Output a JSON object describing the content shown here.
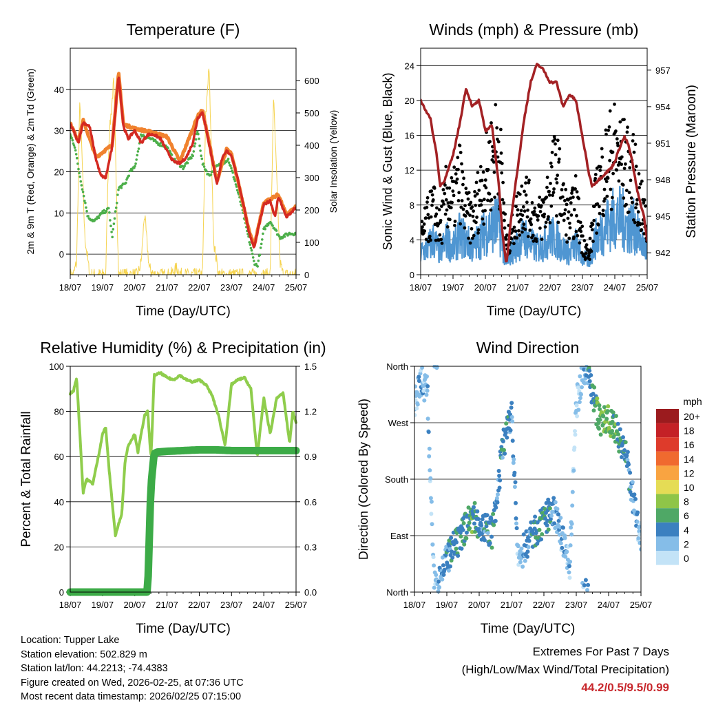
{
  "info": {
    "location": "Location: Tupper Lake",
    "elevation": "Station elevation: 502.829 m",
    "latlon": "Station lat/lon: 44.2213; -74.4383",
    "created": "Figure created on Wed, 2026-02-25, at 07:36 UTC",
    "recent": "Most recent data timestamp: 2026/02/25 07:15:00"
  },
  "extremes": {
    "title": "Extremes For Past 7 Days",
    "subtitle": "(High/Low/Max Wind/Total Precipitation)",
    "values": "44.2/0.5/9.5/0.99"
  },
  "legend": {
    "title": "mph",
    "labels": [
      "20+",
      "18",
      "16",
      "14",
      "12",
      "10",
      "8",
      "6",
      "4",
      "2",
      "0"
    ],
    "colors": [
      "#9b1b1e",
      "#c42126",
      "#de3b2b",
      "#f06a2f",
      "#f9a441",
      "#e5dc55",
      "#8fc548",
      "#4fa866",
      "#3b80c0",
      "#85bde8",
      "#c3e3f7"
    ]
  },
  "chart_data": [
    {
      "type": "line",
      "title": "Temperature (F)",
      "xlabel": "Time (Day/UTC)",
      "ylabel": "2m & 9m T (Red, Orange) & 2m Td (Green)",
      "ylabel_right": "Solar Insolation (Yellow)",
      "x_ticks": [
        "18/07",
        "19/07",
        "20/07",
        "21/07",
        "22/07",
        "23/07",
        "24/07",
        "25/07"
      ],
      "ylim": [
        -5,
        50
      ],
      "y_ticks": [
        0,
        10,
        20,
        30,
        40
      ],
      "ylim_right": [
        0,
        700
      ],
      "y_ticks_right": [
        0,
        100,
        200,
        300,
        400,
        500,
        600
      ],
      "series": [
        {
          "name": "2m T",
          "color": "#d42a22",
          "x": [
            0,
            0.1,
            0.25,
            0.4,
            0.6,
            0.8,
            0.95,
            1.1,
            1.3,
            1.5,
            1.65,
            1.8,
            2,
            2.2,
            2.4,
            2.6,
            2.8,
            3,
            3.2,
            3.4,
            3.6,
            3.8,
            3.95,
            4.1,
            4.3,
            4.45,
            4.55,
            4.7,
            4.85,
            5,
            5.2,
            5.4,
            5.55,
            5.7,
            5.85,
            6,
            6.2,
            6.35,
            6.45,
            6.55,
            6.7,
            6.85,
            6.95,
            7
          ],
          "values": [
            31.5,
            30,
            27,
            32,
            31,
            23,
            19,
            18.5,
            26,
            43.5,
            31,
            28,
            30,
            27,
            29,
            29,
            28,
            25,
            22.5,
            22,
            23.5,
            27,
            33,
            34.5,
            27,
            21,
            17,
            23,
            25,
            24,
            18,
            11,
            5,
            1.5,
            7,
            12,
            13,
            9,
            14,
            12,
            9,
            10,
            11,
            11
          ]
        },
        {
          "name": "9m T",
          "color": "#f0822e",
          "x": [
            0,
            0.25,
            0.4,
            0.8,
            1.3,
            1.5,
            1.65,
            2,
            2.6,
            3,
            3.4,
            3.95,
            4.1,
            4.45,
            4.55,
            4.85,
            5,
            5.55,
            5.7,
            6,
            6.45,
            6.55,
            6.7,
            7
          ],
          "values": [
            31.8,
            27.5,
            32.5,
            23.5,
            26.5,
            44,
            31.5,
            30.5,
            29.5,
            28.5,
            22.5,
            33.5,
            35,
            21.5,
            17.5,
            25.5,
            24.5,
            5.5,
            2,
            12.5,
            14.5,
            12.5,
            9.5,
            11.5
          ]
        },
        {
          "name": "2m Td",
          "color": "#4caf4a",
          "x": [
            0,
            0.15,
            0.25,
            0.4,
            0.55,
            0.75,
            1,
            1.2,
            1.3,
            1.5,
            1.7,
            1.85,
            2,
            2.2,
            2.5,
            2.7,
            3,
            3.2,
            3.5,
            3.8,
            3.95,
            4.1,
            4.3,
            4.5,
            4.7,
            4.9,
            5.1,
            5.3,
            5.5,
            5.7,
            5.8,
            5.9,
            6,
            6.2,
            6.5,
            6.8,
            7
          ],
          "values": [
            29,
            26,
            21,
            15,
            9,
            8,
            10,
            11,
            4,
            16,
            17,
            20,
            21,
            29,
            28,
            27,
            26,
            23,
            21,
            24,
            30,
            22,
            19,
            21,
            22,
            23,
            18,
            12,
            5,
            -2,
            -3,
            1,
            6,
            8,
            4,
            5,
            5
          ]
        },
        {
          "name": "Solar Insolation",
          "color": "#f5d34f",
          "axis": "right",
          "x": [
            0,
            0.1,
            0.2,
            0.3,
            0.45,
            0.6,
            0.7,
            0.85,
            1,
            1.1,
            1.2,
            1.35,
            1.5,
            1.6,
            1.8,
            2,
            2.1,
            2.2,
            2.3,
            2.45,
            2.6,
            2.8,
            3,
            3.1,
            3.2,
            3.3,
            3.45,
            3.6,
            3.8,
            4,
            4.1,
            4.2,
            4.3,
            4.45,
            4.6,
            4.8,
            5,
            5.1,
            5.2,
            5.35,
            5.45,
            5.6,
            5.8,
            6,
            6.1,
            6.2,
            6.3,
            6.4,
            6.5,
            6.6,
            6.8,
            7
          ],
          "values": [
            0,
            0,
            40,
            550,
            120,
            0,
            0,
            0,
            0,
            0,
            420,
            600,
            0,
            0,
            0,
            0,
            0,
            40,
            190,
            20,
            0,
            0,
            0,
            0,
            10,
            20,
            0,
            0,
            0,
            0,
            0,
            490,
            650,
            100,
            0,
            0,
            0,
            0,
            0,
            0,
            0,
            0,
            0,
            0,
            0,
            0,
            550,
            300,
            40,
            0,
            0,
            0
          ]
        }
      ]
    },
    {
      "type": "scatter",
      "title": "Winds (mph) & Pressure (mb)",
      "xlabel": "Time (Day/UTC)",
      "ylabel": "Sonic Wind & Gust (Blue, Black)",
      "ylabel_right": "Station Pressure (Maroon)",
      "x_ticks": [
        "18/07",
        "19/07",
        "20/07",
        "21/07",
        "22/07",
        "23/07",
        "24/07",
        "25/07"
      ],
      "ylim": [
        0,
        26
      ],
      "y_ticks": [
        0,
        4,
        8,
        12,
        16,
        20,
        24
      ],
      "ylim_right": [
        940.2,
        958.8
      ],
      "y_ticks_right": [
        942,
        945,
        948,
        951,
        954,
        957
      ],
      "series": [
        {
          "name": "Sonic Wind",
          "color": "#4f96d2",
          "x": [
            0,
            0.2,
            0.4,
            0.6,
            0.8,
            1,
            1.2,
            1.4,
            1.6,
            1.8,
            2,
            2.2,
            2.4,
            2.55,
            2.65,
            2.8,
            3,
            3.2,
            3.4,
            3.6,
            3.8,
            4,
            4.2,
            4.4,
            4.6,
            4.8,
            5,
            5.2,
            5.4,
            5.6,
            5.8,
            6,
            6.2,
            6.4,
            6.6,
            6.8,
            7
          ],
          "values": [
            2.5,
            3,
            4,
            2.5,
            4,
            3,
            4.5,
            4,
            3,
            4,
            5,
            5.5,
            6,
            3,
            1,
            2.5,
            3.5,
            4.5,
            3.5,
            3,
            3.5,
            4.5,
            4,
            3,
            2.5,
            3.5,
            2,
            1.5,
            4,
            5,
            6,
            6.5,
            6.5,
            5.5,
            5.5,
            4,
            2.5
          ]
        },
        {
          "name": "Gust",
          "color": "#000000",
          "x": [
            0,
            0.2,
            0.4,
            0.6,
            0.8,
            1,
            1.2,
            1.4,
            1.6,
            1.8,
            2,
            2.2,
            2.4,
            2.55,
            2.65,
            2.8,
            3,
            3.2,
            3.4,
            3.6,
            3.8,
            4,
            4.2,
            4.4,
            4.6,
            4.8,
            5,
            5.2,
            5.4,
            5.6,
            5.8,
            6,
            6.2,
            6.4,
            6.6,
            6.8,
            7
          ],
          "values": [
            4,
            6,
            7.5,
            5,
            9,
            8,
            11,
            7,
            6,
            9,
            11,
            13,
            15,
            9,
            3,
            5,
            7,
            9,
            7,
            6,
            7,
            10,
            12,
            8,
            6,
            8,
            4,
            2,
            8,
            11,
            13,
            14,
            13,
            12,
            11,
            8,
            5
          ]
        },
        {
          "name": "Station Pressure",
          "color": "#a32124",
          "axis": "right",
          "x": [
            0,
            0.1,
            0.3,
            0.5,
            0.6,
            0.75,
            1,
            1.2,
            1.4,
            1.6,
            1.8,
            2,
            2.2,
            2.4,
            2.55,
            2.65,
            2.8,
            3,
            3.2,
            3.4,
            3.6,
            3.8,
            4,
            4.2,
            4.4,
            4.6,
            4.8,
            5,
            5.2,
            5.3,
            5.5,
            5.7,
            5.9,
            6,
            6.2,
            6.3,
            6.4,
            6.5,
            6.7,
            6.9,
            7
          ],
          "values": [
            954.5,
            954,
            953,
            950,
            947.5,
            948,
            950,
            952.5,
            955.5,
            954,
            954.5,
            952,
            952.5,
            948,
            943,
            941,
            945,
            949,
            953,
            956,
            957.5,
            957,
            956,
            956,
            954,
            955,
            954.5,
            951.5,
            948.5,
            947.5,
            948,
            948.5,
            949,
            949.5,
            951,
            951.5,
            951,
            950,
            947,
            945,
            943
          ]
        }
      ]
    },
    {
      "type": "line",
      "title": "Relative Humidity (%) & Precipitation (in)",
      "xlabel": "Time (Day/UTC)",
      "ylabel": "Percent & Total Rainfall",
      "x_ticks": [
        "18/07",
        "19/07",
        "20/07",
        "21/07",
        "22/07",
        "23/07",
        "24/07",
        "25/07"
      ],
      "ylim": [
        0,
        100
      ],
      "y_ticks": [
        0,
        20,
        40,
        60,
        80,
        100
      ],
      "ylim_right": [
        0,
        1.5
      ],
      "y_ticks_right": [
        "0.0",
        "0.3",
        "0.6",
        "0.9",
        "1.2",
        "1.5"
      ],
      "series": [
        {
          "name": "Relative Humidity",
          "color": "#8fcd4c",
          "x": [
            0,
            0.1,
            0.2,
            0.3,
            0.4,
            0.5,
            0.7,
            0.9,
            1,
            1.1,
            1.2,
            1.4,
            1.6,
            1.7,
            1.8,
            2,
            2.1,
            2.3,
            2.4,
            2.5,
            2.55,
            2.6,
            2.8,
            3,
            3.2,
            3.4,
            3.6,
            3.8,
            4,
            4.2,
            4.4,
            4.6,
            4.8,
            5,
            5.2,
            5.4,
            5.6,
            5.8,
            6,
            6.2,
            6.4,
            6.6,
            6.8,
            6.9,
            7
          ],
          "values": [
            88,
            89,
            95,
            70,
            44,
            50,
            48,
            62,
            70,
            73,
            55,
            25,
            35,
            58,
            65,
            70,
            62,
            78,
            80,
            60,
            75,
            96,
            97,
            95,
            94,
            96,
            94,
            93,
            94,
            92,
            87,
            78,
            65,
            92,
            94,
            95,
            90,
            60,
            86,
            70,
            86,
            88,
            66,
            80,
            75
          ]
        },
        {
          "name": "Total Precipitation",
          "color": "#3cab47",
          "axis": "right",
          "x": [
            0,
            0.5,
            1,
            1.5,
            2,
            2.4,
            2.5,
            2.6,
            2.7,
            3,
            3.5,
            4,
            4.5,
            5,
            5.5,
            6,
            6.5,
            7
          ],
          "values": [
            0,
            0,
            0,
            0,
            0,
            0,
            0.7,
            0.92,
            0.93,
            0.935,
            0.94,
            0.945,
            0.945,
            0.94,
            0.94,
            0.94,
            0.94,
            0.94
          ]
        }
      ]
    },
    {
      "type": "scatter",
      "title": "Wind Direction",
      "xlabel": "Time (Day/UTC)",
      "ylabel": "Direction (Colored By Speed)",
      "x_ticks": [
        "18/07",
        "19/07",
        "20/07",
        "21/07",
        "22/07",
        "23/07",
        "24/07",
        "25/07"
      ],
      "y_ticks": [
        "North",
        "East",
        "South",
        "West",
        "North"
      ],
      "ylim": [
        0,
        360
      ],
      "series": [
        {
          "name": "Direction",
          "x": [
            0,
            0.2,
            0.4,
            0.6,
            0.8,
            1,
            1.2,
            1.4,
            1.6,
            1.8,
            2,
            2.2,
            2.4,
            2.55,
            2.7,
            2.9,
            3,
            3.2,
            3.4,
            3.6,
            3.8,
            4,
            4.2,
            4.4,
            4.6,
            4.8,
            5,
            5.1,
            5.2,
            5.4,
            5.6,
            5.8,
            6,
            6.2,
            6.4,
            6.6,
            6.8,
            7
          ],
          "values": [
            300,
            340,
            320,
            15,
            30,
            50,
            70,
            80,
            110,
            120,
            110,
            100,
            95,
            140,
            230,
            260,
            290,
            50,
            70,
            90,
            100,
            110,
            130,
            120,
            80,
            40,
            300,
            320,
            360,
            350,
            290,
            270,
            280,
            260,
            240,
            200,
            130,
            90
          ],
          "speeds": [
            1,
            2,
            2,
            1,
            3,
            4,
            4,
            5,
            5,
            6,
            5,
            4,
            5,
            3,
            4,
            5,
            3,
            2,
            3,
            4,
            5,
            5,
            4,
            3,
            2,
            2,
            1,
            1,
            2,
            4,
            6,
            7,
            7,
            6,
            5,
            4,
            3,
            1
          ]
        }
      ]
    }
  ]
}
